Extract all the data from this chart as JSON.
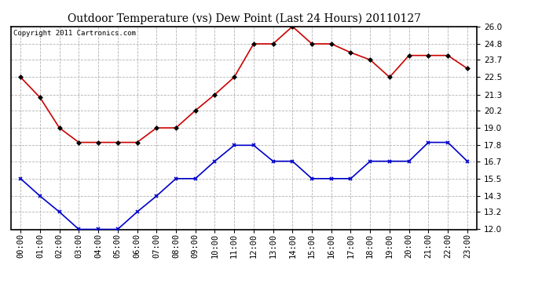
{
  "title": "Outdoor Temperature (vs) Dew Point (Last 24 Hours) 20110127",
  "copyright": "Copyright 2011 Cartronics.com",
  "hours": [
    "00:00",
    "01:00",
    "02:00",
    "03:00",
    "04:00",
    "05:00",
    "06:00",
    "07:00",
    "08:00",
    "09:00",
    "10:00",
    "11:00",
    "12:00",
    "13:00",
    "14:00",
    "15:00",
    "16:00",
    "17:00",
    "18:00",
    "19:00",
    "20:00",
    "21:00",
    "22:00",
    "23:00"
  ],
  "temp": [
    22.5,
    21.1,
    19.0,
    18.0,
    18.0,
    18.0,
    18.0,
    19.0,
    19.0,
    20.2,
    21.3,
    22.5,
    24.8,
    24.8,
    26.0,
    24.8,
    24.8,
    24.2,
    23.7,
    22.5,
    24.0,
    24.0,
    24.0,
    23.1
  ],
  "dewpoint": [
    15.5,
    14.3,
    13.2,
    12.0,
    12.0,
    12.0,
    13.2,
    14.3,
    15.5,
    15.5,
    16.7,
    17.8,
    17.8,
    16.7,
    16.7,
    15.5,
    15.5,
    15.5,
    16.7,
    16.7,
    16.7,
    18.0,
    18.0,
    16.7
  ],
  "temp_color": "#cc0000",
  "dew_color": "#0000cc",
  "ylim_min": 12.0,
  "ylim_max": 26.0,
  "yticks": [
    12.0,
    13.2,
    14.3,
    15.5,
    16.7,
    17.8,
    19.0,
    20.2,
    21.3,
    22.5,
    23.7,
    24.8,
    26.0
  ],
  "background_color": "#ffffff",
  "grid_color": "#aaaaaa",
  "title_fontsize": 10,
  "copyright_fontsize": 6.5,
  "tick_fontsize": 7.5
}
